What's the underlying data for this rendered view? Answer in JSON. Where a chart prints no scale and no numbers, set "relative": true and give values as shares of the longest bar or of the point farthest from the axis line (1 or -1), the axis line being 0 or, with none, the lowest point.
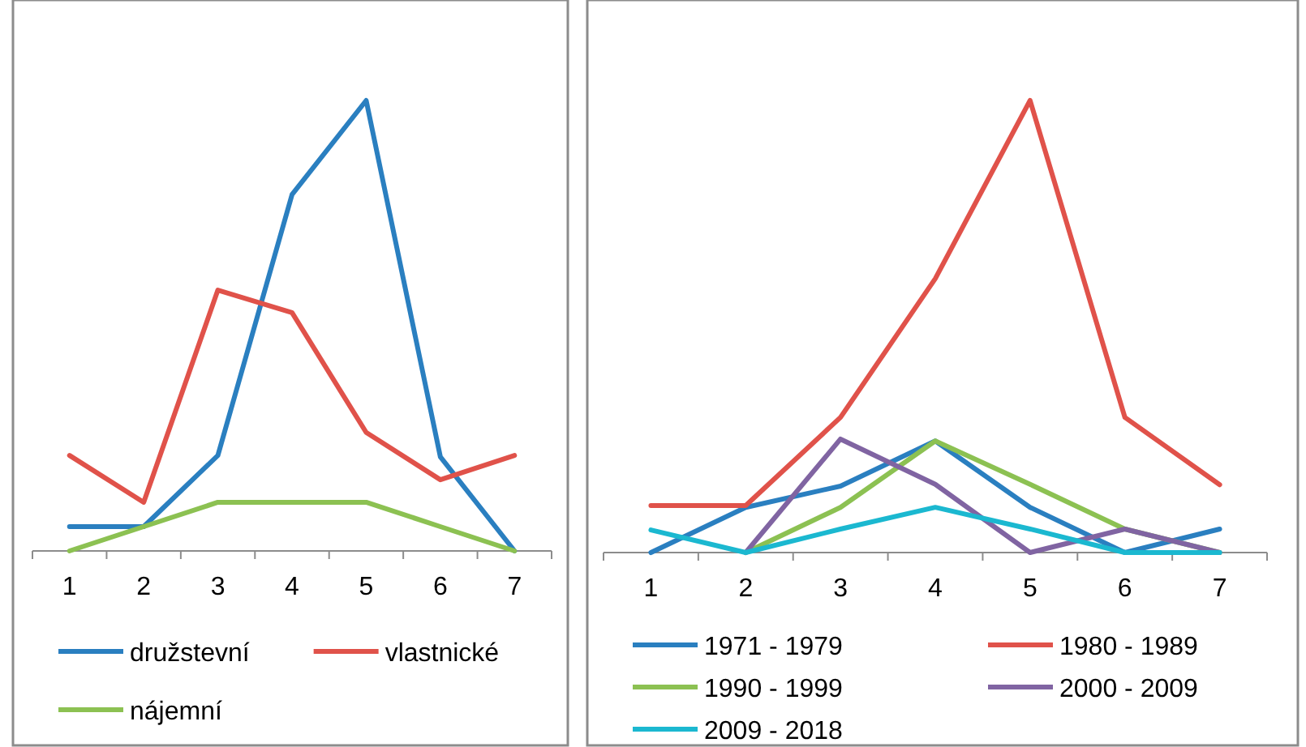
{
  "chart_data": [
    {
      "type": "line",
      "relative": true,
      "categories": [
        "1",
        "2",
        "3",
        "4",
        "5",
        "6",
        "7"
      ],
      "legend": "bottom",
      "grid": false,
      "series": [
        {
          "name": "družstevní",
          "color": "#2a7fc0",
          "values": [
            0.054,
            0.054,
            0.212,
            0.791,
            1,
            0.209,
            0
          ]
        },
        {
          "name": "vlastnické",
          "color": "#e0524a",
          "values": [
            0.212,
            0.108,
            0.579,
            0.529,
            0.263,
            0.158,
            0.212
          ]
        },
        {
          "name": "nájemní",
          "color": "#8cc152",
          "values": [
            0,
            0.054,
            0.108,
            0.108,
            0.108,
            0.054,
            0
          ]
        }
      ]
    },
    {
      "type": "line",
      "relative": true,
      "categories": [
        "1",
        "2",
        "3",
        "4",
        "5",
        "6",
        "7"
      ],
      "legend": "bottom",
      "grid": false,
      "series": [
        {
          "name": "1971 - 1979",
          "color": "#2a7fc0",
          "values": [
            0,
            0.1,
            0.147,
            0.247,
            0.1,
            0,
            0.052
          ]
        },
        {
          "name": "1980 - 1989",
          "color": "#e0524a",
          "values": [
            0.104,
            0.104,
            0.299,
            0.606,
            1,
            0.299,
            0.15
          ]
        },
        {
          "name": "1990 - 1999",
          "color": "#8cc152",
          "values": [
            null,
            0,
            0.1,
            0.247,
            0.151,
            0.052,
            0
          ]
        },
        {
          "name": "2000 - 2009",
          "color": "#8064a2",
          "values": [
            null,
            0,
            0.251,
            0.151,
            0,
            0.052,
            0
          ]
        },
        {
          "name": "2009 - 2018",
          "color": "#1bb8d0",
          "values": [
            0.05,
            0,
            0.052,
            0.1,
            0.052,
            0,
            0
          ]
        }
      ]
    }
  ]
}
